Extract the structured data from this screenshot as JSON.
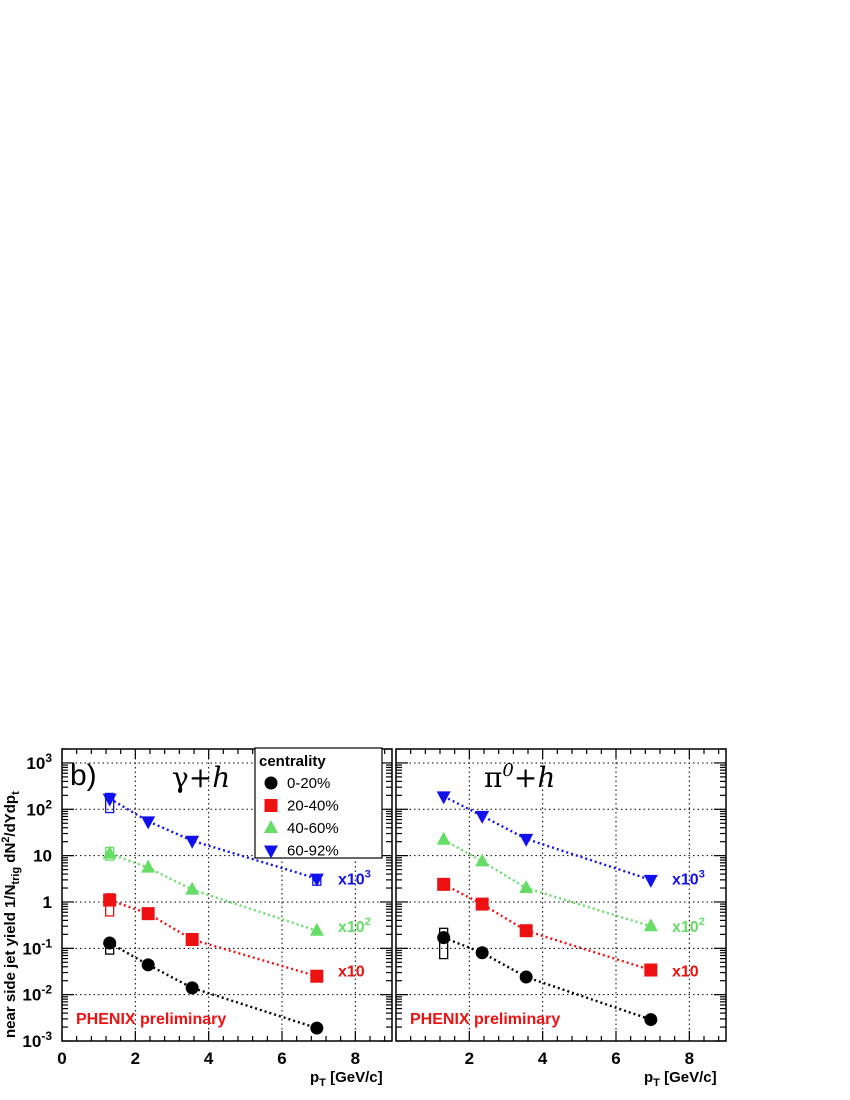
{
  "chart_data": {
    "type": "scatter",
    "ylabel": "near side jet yield  1/N",
    "ylabel_sub": "trig",
    "ylabel_rest": " dN",
    "ylabel_sup": "2",
    "ylabel_end": "/dYdp",
    "ylabel_end_sub": "t",
    "xlabel": "p",
    "xlabel_sub": "T",
    "xlabel_unit": " [GeV/c]",
    "xlim": [
      0,
      9
    ],
    "ylim": [
      0.001,
      2000
    ],
    "yscale": "log",
    "grid": true,
    "x_ticks": [
      "0",
      "2",
      "4",
      "6",
      "8"
    ],
    "x_ticks_right": [
      "2",
      "4",
      "6",
      "8"
    ],
    "y_ticks": [
      {
        "base": "10",
        "exp": "3"
      },
      {
        "base": "10",
        "exp": "2"
      },
      {
        "base": "10",
        "exp": ""
      },
      {
        "base": "1",
        "exp": ""
      },
      {
        "base": "10",
        "exp": "-1"
      },
      {
        "base": "10",
        "exp": "-2"
      },
      {
        "base": "10",
        "exp": "-3"
      }
    ],
    "legend": {
      "title": "centrality",
      "placement": "top-center",
      "entries": [
        {
          "label": "0-20%",
          "color": "#000000",
          "marker": "circle"
        },
        {
          "label": "20-40%",
          "color": "#ee1111",
          "marker": "square"
        },
        {
          "label": "40-60%",
          "color": "#66dd66",
          "marker": "triangle-up"
        },
        {
          "label": "60-92%",
          "color": "#1111ee",
          "marker": "triangle-down"
        }
      ]
    },
    "panels": [
      {
        "label": "b)",
        "title_main": "γ+",
        "title_it": "h",
        "annotation": "PHENIX preliminary",
        "scale_labels": [
          {
            "base": "x10",
            "exp": "3",
            "y": 3.2,
            "color": "#1111ee"
          },
          {
            "base": "x10",
            "exp": "2",
            "y": 0.3,
            "color": "#66dd66"
          },
          {
            "base": "x10",
            "exp": "",
            "y": 0.033,
            "color": "#ee1111"
          }
        ],
        "series": [
          {
            "name": "0-20%",
            "color": "#000000",
            "marker": "circle",
            "x": [
              1.3,
              2.35,
              3.55,
              6.95
            ],
            "y": [
              0.13,
              0.044,
              0.014,
              0.0019
            ],
            "sys": [
              [
                0.075,
                0.16
              ],
              null,
              null,
              null
            ]
          },
          {
            "name": "20-40%",
            "color": "#ee1111",
            "marker": "square",
            "x": [
              1.3,
              2.35,
              3.55,
              6.95
            ],
            "y": [
              1.1,
              0.56,
              0.155,
              0.025
            ],
            "sys": [
              [
                0.5,
                1.5
              ],
              null,
              null,
              null
            ]
          },
          {
            "name": "40-60%",
            "color": "#66dd66",
            "marker": "triangle-up",
            "x": [
              1.3,
              2.35,
              3.55,
              6.95
            ],
            "y": [
              11,
              5.5,
              1.85,
              0.24
            ],
            "sys": [
              [
                8,
                15
              ],
              null,
              null,
              null
            ]
          },
          {
            "name": "60-92%",
            "color": "#1111ee",
            "marker": "triangle-down",
            "x": [
              1.3,
              2.35,
              3.55,
              6.95
            ],
            "y": [
              170,
              55,
              21,
              3.2
            ],
            "sys": [
              [
                85,
                220
              ],
              null,
              null,
              [
                2.3,
                3.8
              ]
            ]
          }
        ]
      },
      {
        "label": "",
        "title_main": "π",
        "title_sup": "0",
        "title_rest": "+",
        "title_it": "h",
        "annotation": "PHENIX preliminary",
        "scale_labels": [
          {
            "base": "x10",
            "exp": "3",
            "y": 3.2,
            "color": "#1111ee"
          },
          {
            "base": "x10",
            "exp": "2",
            "y": 0.3,
            "color": "#66dd66"
          },
          {
            "base": "x10",
            "exp": "",
            "y": 0.033,
            "color": "#ee1111"
          }
        ],
        "series": [
          {
            "name": "0-20%",
            "color": "#000000",
            "marker": "circle",
            "x": [
              1.3,
              2.35,
              3.55,
              6.95
            ],
            "y": [
              0.17,
              0.08,
              0.024,
              0.0029
            ],
            "sys": [
              [
                0.06,
                0.27
              ],
              null,
              null,
              null
            ]
          },
          {
            "name": "20-40%",
            "color": "#ee1111",
            "marker": "square",
            "x": [
              1.3,
              2.35,
              3.55,
              6.95
            ],
            "y": [
              2.4,
              0.9,
              0.24,
              0.034
            ],
            "sys": null
          },
          {
            "name": "40-60%",
            "color": "#66dd66",
            "marker": "triangle-up",
            "x": [
              1.3,
              2.35,
              3.55,
              6.95
            ],
            "y": [
              22,
              7.5,
              2.0,
              0.3
            ],
            "sys": null
          },
          {
            "name": "60-92%",
            "color": "#1111ee",
            "marker": "triangle-down",
            "x": [
              1.3,
              2.35,
              3.55,
              6.95
            ],
            "y": [
              190,
              72,
              23,
              3.0
            ],
            "sys": null
          }
        ]
      }
    ]
  }
}
